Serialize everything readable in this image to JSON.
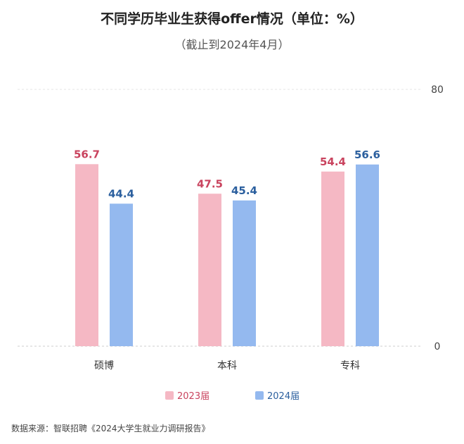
{
  "chart_data": {
    "type": "bar",
    "title": "不同学历毕业生获得offer情况（单位：%）",
    "subtitle": "（截止到2024年4月）",
    "categories": [
      "硕博",
      "本科",
      "专科"
    ],
    "series": [
      {
        "name": "2023届",
        "values": [
          56.7,
          47.5,
          54.4
        ],
        "color": "#f5b8c4",
        "label_color": "#c9435e"
      },
      {
        "name": "2024届",
        "values": [
          44.4,
          45.4,
          56.6
        ],
        "color": "#94b9ef",
        "label_color": "#2b5f9e"
      }
    ],
    "ylim": [
      0,
      80
    ],
    "yticks": [
      "80",
      "0"
    ],
    "legend_position": "bottom"
  },
  "source": "数据来源：智联招聘《2024大学生就业力调研报告》"
}
